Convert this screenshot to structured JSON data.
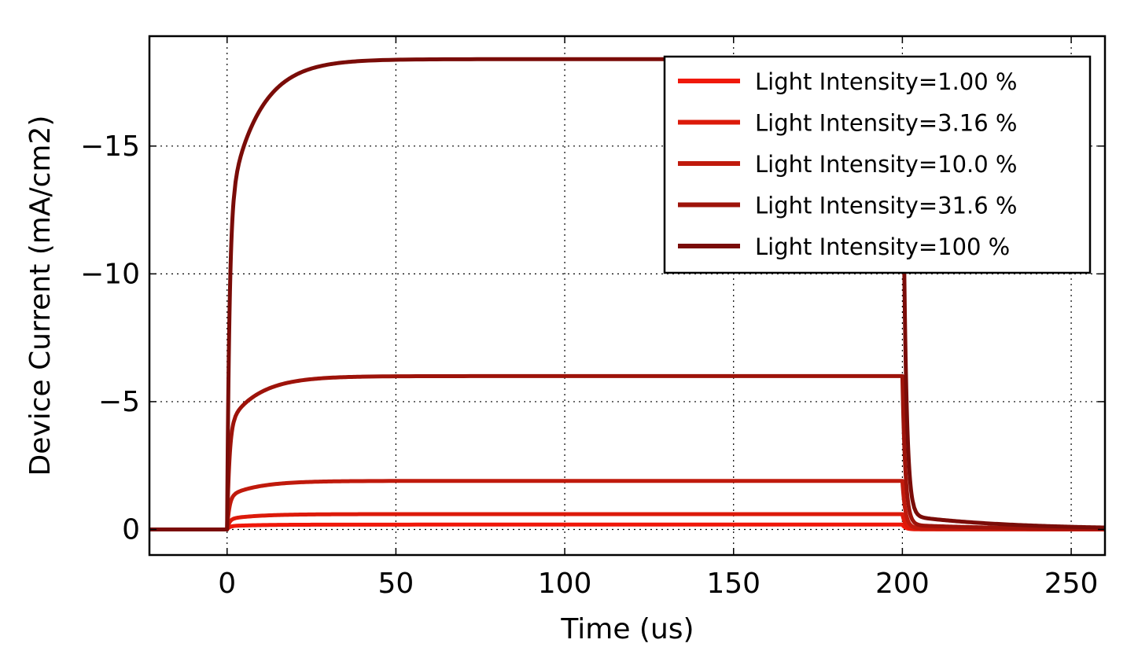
{
  "chart_data": {
    "type": "line",
    "title": "",
    "xlabel": "Time (us)",
    "ylabel": "Device Current (mA/cm2)",
    "xlim": [
      -23,
      260
    ],
    "ylim": [
      1,
      -19.3
    ],
    "y_axis_inverted": true,
    "xticks": [
      0,
      50,
      100,
      150,
      200,
      250
    ],
    "xtick_labels": [
      "0",
      "50",
      "100",
      "150",
      "200",
      "250"
    ],
    "yticks": [
      0,
      -5,
      -10,
      -15
    ],
    "ytick_labels": [
      "0",
      "−5",
      "−10",
      "−15"
    ],
    "grid": true,
    "legend_position": "top-right",
    "pulse": {
      "on_time": 0,
      "off_time": 200
    },
    "series": [
      {
        "name": "Light Intensity=1.00 %",
        "color": "#f0180a",
        "steady_current": -0.19
      },
      {
        "name": "Light Intensity=3.16 %",
        "color": "#dc1a0a",
        "steady_current": -0.6
      },
      {
        "name": "Light Intensity=10.0 %",
        "color": "#c01a0c",
        "steady_current": -1.9
      },
      {
        "name": "Light Intensity=31.6 %",
        "color": "#9e130a",
        "steady_current": -6.0
      },
      {
        "name": "Light Intensity=100 %",
        "color": "#7a0c08",
        "steady_current": -18.4
      }
    ]
  }
}
